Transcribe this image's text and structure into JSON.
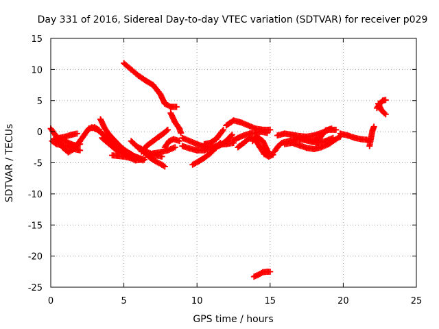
{
  "chart_data": {
    "type": "scatter",
    "title": "Day 331 of 2016, Sidereal Day-to-day VTEC variation (SDTVAR) for receiver p029",
    "xlabel": "GPS time / hours",
    "ylabel": "SDTVAR / TECUs",
    "xlim": [
      0,
      25
    ],
    "ylim": [
      -25,
      15
    ],
    "xticks": [
      0,
      5,
      10,
      15,
      20,
      25
    ],
    "yticks": [
      15,
      10,
      5,
      0,
      -5,
      -10,
      -15,
      -20,
      -25
    ],
    "grid": true,
    "marker": "plus",
    "series_color": "#ff0000",
    "tracks": [
      {
        "name": "t1",
        "points": [
          [
            0.0,
            0.5
          ],
          [
            0.3,
            -0.5
          ],
          [
            0.6,
            -1.3
          ],
          [
            1.0,
            -1.5
          ],
          [
            1.4,
            -2.0
          ],
          [
            1.7,
            -2.2
          ],
          [
            2.0,
            -2.0
          ]
        ]
      },
      {
        "name": "t2",
        "points": [
          [
            0.1,
            -1.5
          ],
          [
            0.4,
            -2.0
          ],
          [
            0.8,
            -2.2
          ],
          [
            1.2,
            -2.3
          ],
          [
            1.6,
            -2.8
          ],
          [
            2.0,
            -3.0
          ]
        ]
      },
      {
        "name": "t3",
        "points": [
          [
            0.5,
            -1.0
          ],
          [
            0.8,
            -2.5
          ],
          [
            1.2,
            -3.3
          ],
          [
            1.6,
            -2.8
          ],
          [
            2.0,
            -1.5
          ],
          [
            2.3,
            -0.5
          ],
          [
            2.6,
            0.5
          ],
          [
            3.0,
            0.7
          ],
          [
            3.3,
            0.3
          ]
        ]
      },
      {
        "name": "t4",
        "points": [
          [
            0.2,
            -1.2
          ],
          [
            0.6,
            -1.0
          ],
          [
            1.0,
            -0.8
          ],
          [
            1.4,
            -0.5
          ],
          [
            1.8,
            -0.3
          ]
        ]
      },
      {
        "name": "t5",
        "points": [
          [
            2.8,
            0.7
          ],
          [
            3.2,
            0.3
          ],
          [
            3.6,
            -0.5
          ],
          [
            4.0,
            -1.5
          ],
          [
            4.5,
            -2.5
          ],
          [
            5.0,
            -3.2
          ],
          [
            5.5,
            -3.6
          ]
        ]
      },
      {
        "name": "t6",
        "points": [
          [
            3.4,
            2.0
          ],
          [
            3.7,
            0.5
          ],
          [
            4.0,
            -0.5
          ],
          [
            4.4,
            -1.5
          ],
          [
            4.8,
            -2.5
          ],
          [
            5.2,
            -3.2
          ],
          [
            5.6,
            -3.8
          ],
          [
            6.0,
            -4.2
          ],
          [
            6.3,
            -4.6
          ]
        ]
      },
      {
        "name": "t7",
        "points": [
          [
            3.5,
            -1.0
          ],
          [
            4.0,
            -2.0
          ],
          [
            4.5,
            -3.0
          ],
          [
            5.0,
            -3.6
          ],
          [
            5.5,
            -4.0
          ],
          [
            6.0,
            -4.2
          ],
          [
            6.4,
            -4.5
          ]
        ]
      },
      {
        "name": "t8",
        "points": [
          [
            4.2,
            -3.8
          ],
          [
            4.6,
            -3.9
          ],
          [
            5.0,
            -4.0
          ],
          [
            5.4,
            -4.2
          ],
          [
            5.8,
            -4.6
          ],
          [
            6.2,
            -4.5
          ]
        ]
      },
      {
        "name": "t9",
        "points": [
          [
            5.5,
            -1.5
          ],
          [
            5.8,
            -2.2
          ],
          [
            6.2,
            -3.0
          ],
          [
            6.5,
            -3.5
          ],
          [
            6.8,
            -4.2
          ],
          [
            7.2,
            -4.8
          ],
          [
            7.6,
            -5.3
          ],
          [
            7.8,
            -5.6
          ]
        ]
      },
      {
        "name": "t10",
        "points": [
          [
            6.0,
            -2.5
          ],
          [
            6.4,
            -3.0
          ],
          [
            6.8,
            -3.5
          ],
          [
            7.2,
            -3.8
          ],
          [
            7.6,
            -4.0
          ]
        ]
      },
      {
        "name": "t11",
        "points": [
          [
            6.2,
            -3.2
          ],
          [
            6.6,
            -2.2
          ],
          [
            7.0,
            -1.5
          ],
          [
            7.4,
            -0.8
          ],
          [
            7.7,
            -0.3
          ],
          [
            8.0,
            0.3
          ]
        ]
      },
      {
        "name": "t12",
        "points": [
          [
            6.5,
            -3.8
          ],
          [
            7.0,
            -3.5
          ],
          [
            7.5,
            -3.3
          ],
          [
            8.0,
            -3.0
          ],
          [
            8.5,
            -2.5
          ]
        ]
      },
      {
        "name": "t13",
        "points": [
          [
            7.8,
            -2.5
          ],
          [
            8.1,
            -1.5
          ],
          [
            8.4,
            -1.2
          ],
          [
            8.8,
            -1.5
          ]
        ]
      },
      {
        "name": "t14",
        "points": [
          [
            5.0,
            11.0
          ],
          [
            5.5,
            10.0
          ],
          [
            6.0,
            9.0
          ],
          [
            6.5,
            8.2
          ],
          [
            7.0,
            7.5
          ],
          [
            7.5,
            6.0
          ],
          [
            7.8,
            4.5
          ],
          [
            8.2,
            4.0
          ],
          [
            8.6,
            4.0
          ]
        ]
      },
      {
        "name": "t15",
        "points": [
          [
            8.2,
            3.0
          ],
          [
            8.5,
            1.5
          ],
          [
            8.8,
            0.5
          ],
          [
            8.9,
            -0.2
          ]
        ]
      },
      {
        "name": "t16",
        "points": [
          [
            9.0,
            -2.3
          ],
          [
            9.5,
            -2.7
          ],
          [
            10.0,
            -3.0
          ],
          [
            10.5,
            -3.0
          ],
          [
            11.0,
            -2.6
          ],
          [
            11.5,
            -2.1
          ],
          [
            12.0,
            -2.0
          ],
          [
            12.5,
            -1.8
          ]
        ]
      },
      {
        "name": "t17",
        "points": [
          [
            9.0,
            -1.0
          ],
          [
            9.5,
            -1.5
          ],
          [
            10.0,
            -2.0
          ],
          [
            10.5,
            -2.4
          ],
          [
            11.0,
            -2.5
          ],
          [
            11.5,
            -2.3
          ],
          [
            12.0,
            -1.5
          ],
          [
            12.4,
            -0.5
          ]
        ]
      },
      {
        "name": "t18",
        "points": [
          [
            9.7,
            -5.3
          ],
          [
            10.1,
            -4.8
          ],
          [
            10.5,
            -4.2
          ],
          [
            10.9,
            -3.5
          ],
          [
            11.3,
            -2.6
          ],
          [
            11.6,
            -1.8
          ]
        ]
      },
      {
        "name": "t19",
        "points": [
          [
            10.5,
            -2.0
          ],
          [
            10.9,
            -1.8
          ],
          [
            11.3,
            -1.2
          ],
          [
            11.6,
            -0.3
          ],
          [
            11.8,
            0.3
          ]
        ]
      },
      {
        "name": "t20",
        "points": [
          [
            12.0,
            1.0
          ],
          [
            12.5,
            1.8
          ],
          [
            13.0,
            1.5
          ],
          [
            13.5,
            1.0
          ],
          [
            14.0,
            0.5
          ],
          [
            14.5,
            0.3
          ],
          [
            15.0,
            0.3
          ]
        ]
      },
      {
        "name": "t21",
        "points": [
          [
            12.4,
            -1.5
          ],
          [
            12.8,
            -1.0
          ],
          [
            13.2,
            -0.6
          ],
          [
            13.6,
            -0.3
          ],
          [
            14.0,
            -0.2
          ],
          [
            14.4,
            0.0
          ],
          [
            14.8,
            -0.2
          ]
        ]
      },
      {
        "name": "t22",
        "points": [
          [
            12.8,
            -2.5
          ],
          [
            13.2,
            -1.8
          ],
          [
            13.6,
            -1.0
          ],
          [
            14.0,
            -1.3
          ],
          [
            14.3,
            -2.5
          ],
          [
            14.6,
            -3.6
          ],
          [
            14.9,
            -4.0
          ],
          [
            15.2,
            -3.7
          ]
        ]
      },
      {
        "name": "t23",
        "points": [
          [
            13.8,
            -1.5
          ],
          [
            14.1,
            -0.8
          ],
          [
            14.5,
            -1.5
          ],
          [
            14.8,
            -3.0
          ],
          [
            15.0,
            -3.6
          ]
        ]
      },
      {
        "name": "t24",
        "points": [
          [
            15.3,
            -3.2
          ],
          [
            15.5,
            -2.5
          ],
          [
            15.7,
            -2.0
          ]
        ]
      },
      {
        "name": "t25",
        "points": [
          [
            15.5,
            -0.6
          ],
          [
            16.0,
            -0.3
          ],
          [
            16.5,
            -0.5
          ],
          [
            17.0,
            -0.7
          ],
          [
            17.5,
            -0.8
          ],
          [
            18.0,
            -0.6
          ],
          [
            18.5,
            -0.2
          ],
          [
            19.0,
            0.3
          ],
          [
            19.5,
            0.3
          ]
        ]
      },
      {
        "name": "t26",
        "points": [
          [
            15.8,
            -1.8
          ],
          [
            16.3,
            -1.5
          ],
          [
            16.8,
            -1.2
          ],
          [
            17.3,
            -1.3
          ],
          [
            17.8,
            -1.6
          ],
          [
            18.3,
            -1.8
          ],
          [
            18.8,
            -1.5
          ],
          [
            19.3,
            -1.0
          ]
        ]
      },
      {
        "name": "t27",
        "points": [
          [
            16.0,
            -2.0
          ],
          [
            16.5,
            -1.8
          ],
          [
            17.0,
            -2.2
          ],
          [
            17.5,
            -2.6
          ],
          [
            18.0,
            -2.8
          ],
          [
            18.5,
            -2.5
          ],
          [
            19.0,
            -2.0
          ],
          [
            19.5,
            -1.2
          ],
          [
            19.8,
            -0.8
          ]
        ]
      },
      {
        "name": "t28",
        "points": [
          [
            17.0,
            -1.0
          ],
          [
            17.5,
            -1.2
          ],
          [
            18.0,
            -1.6
          ],
          [
            18.4,
            -1.0
          ],
          [
            18.8,
            0.2
          ],
          [
            19.2,
            0.5
          ]
        ]
      },
      {
        "name": "t29",
        "points": [
          [
            19.8,
            -0.3
          ],
          [
            20.3,
            -0.6
          ],
          [
            20.8,
            -1.0
          ],
          [
            21.2,
            -1.2
          ],
          [
            21.6,
            -1.3
          ],
          [
            21.8,
            -1.5
          ]
        ]
      },
      {
        "name": "t30",
        "points": [
          [
            21.8,
            -2.3
          ],
          [
            21.9,
            -1.0
          ],
          [
            22.0,
            0.2
          ],
          [
            22.1,
            0.8
          ]
        ]
      },
      {
        "name": "t31",
        "points": [
          [
            22.3,
            3.8
          ],
          [
            22.5,
            4.5
          ],
          [
            22.7,
            5.0
          ],
          [
            22.9,
            5.1
          ]
        ]
      },
      {
        "name": "t32",
        "points": [
          [
            22.4,
            4.5
          ],
          [
            22.6,
            3.5
          ],
          [
            22.8,
            3.0
          ],
          [
            22.9,
            2.8
          ]
        ]
      },
      {
        "name": "t33",
        "points": [
          [
            13.9,
            -23.3
          ],
          [
            14.2,
            -23.0
          ],
          [
            14.5,
            -22.6
          ],
          [
            14.8,
            -22.5
          ],
          [
            15.0,
            -22.5
          ]
        ]
      }
    ]
  }
}
